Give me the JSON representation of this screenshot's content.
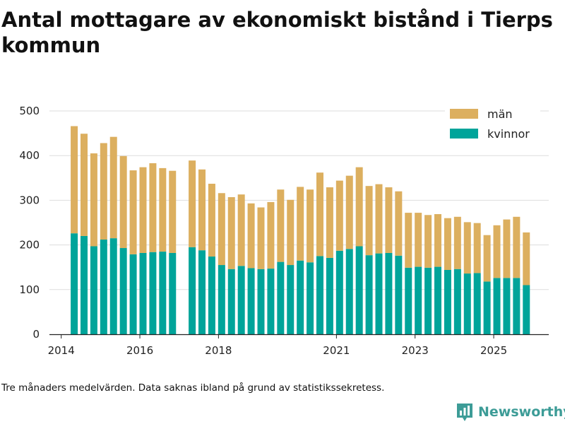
{
  "title": "Antal mottagare av ekonomiskt bistånd i Tierps kommun",
  "caption": "Tre månaders medelvärden. Data saknas ibland på grund av statistikssekretess.",
  "brand": {
    "name": "Newsworthy",
    "icon": "bar-chart-logo-icon",
    "color": "#3d9c97"
  },
  "colors": {
    "man": "#dcaf5f",
    "kvinnor": "#00a49a",
    "grid": "#dddddd",
    "axis": "#222222"
  },
  "chart_data": {
    "type": "bar",
    "stacked": true,
    "title": "Antal mottagare av ekonomiskt bistånd i Tierps kommun",
    "xlabel": "",
    "ylabel": "",
    "ylim": [
      0,
      500
    ],
    "yticks": [
      0,
      100,
      200,
      300,
      400,
      500
    ],
    "xlim": [
      2013.7,
      2026.4
    ],
    "xticks": [
      {
        "label": "2014",
        "value": 2014.0
      },
      {
        "label": "2016",
        "value": 2016.0
      },
      {
        "label": "2018",
        "value": 2018.0
      },
      {
        "label": "2021",
        "value": 2021.0
      },
      {
        "label": "2023",
        "value": 2023.0
      },
      {
        "label": "2025",
        "value": 2025.0
      }
    ],
    "grid": true,
    "legend_position": "top-right",
    "x": [
      2014.33,
      2014.58,
      2014.83,
      2015.08,
      2015.33,
      2015.58,
      2015.83,
      2016.08,
      2016.33,
      2016.58,
      2016.83,
      2017.33,
      2017.58,
      2017.83,
      2018.08,
      2018.33,
      2018.58,
      2018.83,
      2019.08,
      2019.33,
      2019.58,
      2019.83,
      2020.08,
      2020.33,
      2020.58,
      2020.83,
      2021.08,
      2021.33,
      2021.58,
      2021.83,
      2022.08,
      2022.33,
      2022.58,
      2022.83,
      2023.08,
      2023.33,
      2023.58,
      2023.83,
      2024.08,
      2024.33,
      2024.58,
      2024.83,
      2025.08,
      2025.33,
      2025.58,
      2025.83
    ],
    "series": [
      {
        "name": "kvinnor",
        "color": "#00a49a",
        "values": [
          226,
          220,
          197,
          212,
          215,
          193,
          179,
          182,
          184,
          185,
          182,
          195,
          188,
          174,
          155,
          146,
          153,
          148,
          146,
          147,
          162,
          155,
          165,
          161,
          175,
          171,
          187,
          191,
          197,
          177,
          181,
          182,
          176,
          149,
          151,
          149,
          151,
          144,
          146,
          136,
          137,
          118,
          126,
          126,
          126,
          110
        ]
      },
      {
        "name": "män",
        "color": "#dcaf5f",
        "values": [
          240,
          229,
          208,
          216,
          227,
          206,
          188,
          192,
          199,
          187,
          184,
          194,
          181,
          163,
          161,
          161,
          160,
          145,
          138,
          149,
          162,
          146,
          165,
          163,
          187,
          158,
          157,
          164,
          177,
          155,
          155,
          147,
          144,
          123,
          121,
          118,
          118,
          116,
          117,
          115,
          112,
          104,
          118,
          131,
          137,
          118
        ]
      }
    ],
    "legend": [
      "män",
      "kvinnor"
    ]
  }
}
